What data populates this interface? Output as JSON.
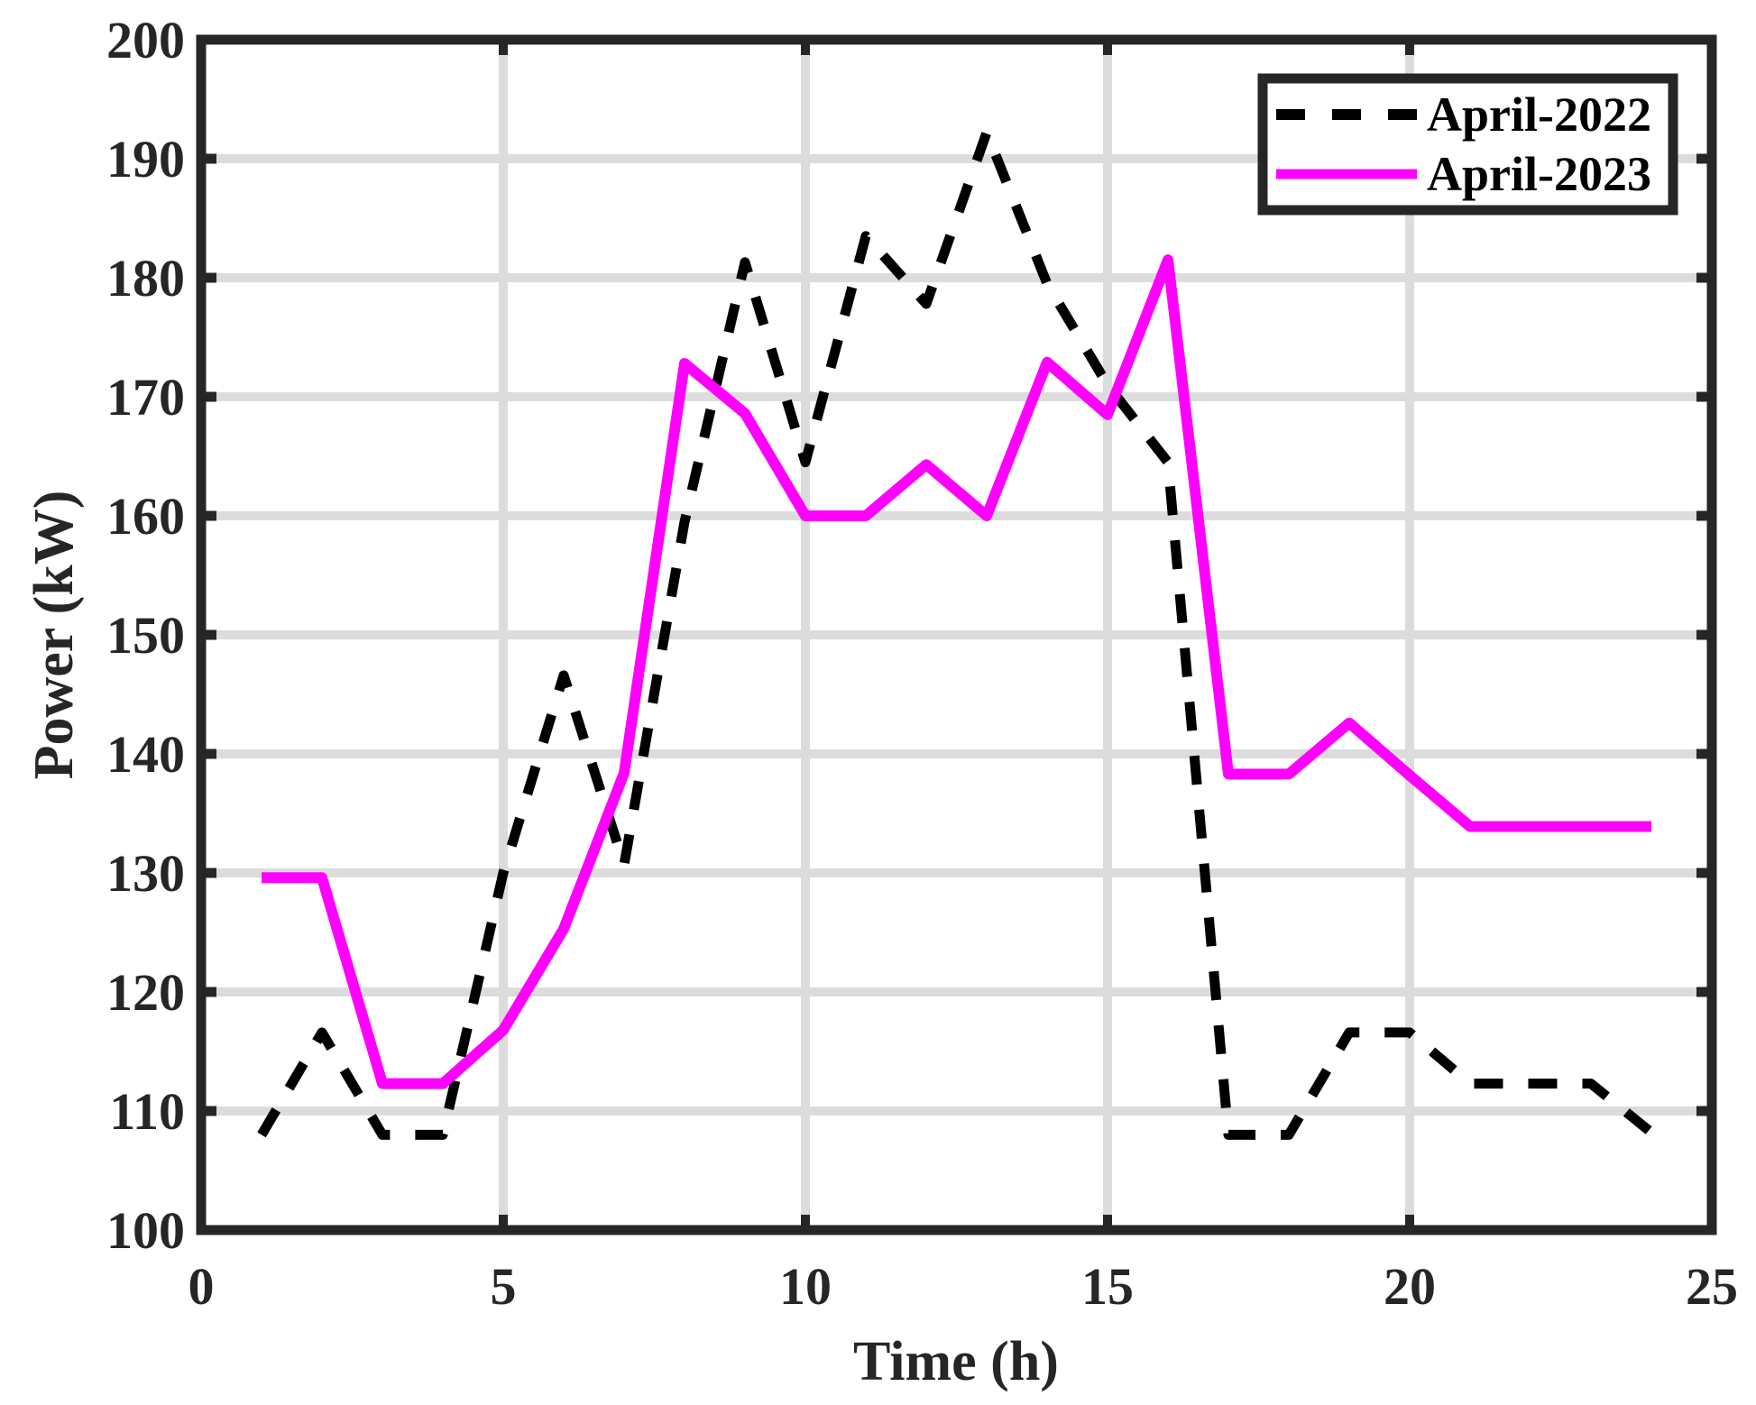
{
  "chart_data": {
    "type": "line",
    "title": "",
    "xlabel": "Time (h)",
    "ylabel": "Power (kW)",
    "xlim": [
      0,
      25
    ],
    "ylim": [
      100,
      200
    ],
    "xticks": [
      0,
      5,
      10,
      15,
      20,
      25
    ],
    "yticks": [
      100,
      110,
      120,
      130,
      140,
      150,
      160,
      170,
      180,
      190,
      200
    ],
    "grid": true,
    "legend_position": "upper right",
    "x": [
      1,
      2,
      3,
      4,
      5,
      6,
      7,
      8,
      9,
      10,
      11,
      12,
      13,
      14,
      15,
      16,
      17,
      18,
      19,
      20,
      21,
      22,
      23,
      24
    ],
    "series": [
      {
        "name": "April-2022",
        "style": "dashed",
        "color": "#000000",
        "values": [
          108.0,
          116.6,
          108.0,
          108.0,
          130.0,
          146.6,
          130.7,
          159.5,
          181.3,
          164.5,
          183.5,
          177.8,
          192.2,
          179.5,
          171.0,
          164.5,
          108.0,
          108.0,
          116.6,
          116.6,
          112.3,
          112.3,
          112.3,
          108.2
        ]
      },
      {
        "name": "April-2023",
        "style": "solid",
        "color": "#FF00FF",
        "values": [
          129.6,
          129.6,
          112.3,
          112.3,
          116.8,
          125.3,
          138.4,
          172.8,
          168.6,
          160.0,
          160.0,
          164.3,
          160.0,
          172.9,
          168.5,
          181.5,
          138.3,
          138.3,
          142.6,
          138.2,
          133.9,
          133.9,
          133.9,
          133.9
        ]
      }
    ]
  },
  "colors": {
    "axis": "#262626",
    "grid": "#DCDCDC",
    "background": "#FFFFFF"
  }
}
